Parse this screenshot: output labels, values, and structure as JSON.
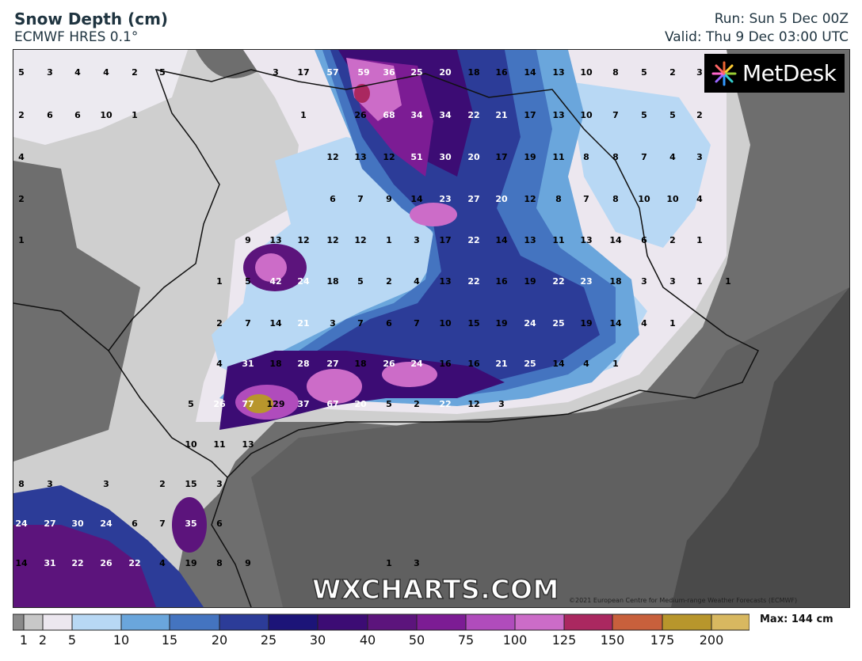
{
  "header": {
    "title": "Snow Depth (cm)",
    "subtitle": "ECMWF HRES 0.1°",
    "run": "Run: Sun 5 Dec 00Z",
    "valid": "Valid: Thu 9 Dec 03:00 UTC"
  },
  "logo": {
    "text": "MetDesk"
  },
  "watermark": "WXCHARTS.COM",
  "copyright": "©2021 European Centre for Medium-range Weather Forecasts (ECMWF)",
  "legend": {
    "max_label": "Max: 144 cm",
    "ticks": [
      "1",
      "2",
      "5",
      "10",
      "15",
      "20",
      "25",
      "30",
      "40",
      "50",
      "75",
      "100",
      "125",
      "150",
      "175",
      "200"
    ],
    "colors": [
      "#8a8a8a",
      "#c8c8c8",
      "#ece7ef",
      "#b8d8f4",
      "#6aa6dc",
      "#4474c0",
      "#2c3c98",
      "#1c1478",
      "#3c0c74",
      "#5c147c",
      "#7c1c94",
      "#b04cbc",
      "#cc6cc8",
      "#aa2860",
      "#c8603c",
      "#b8962c",
      "#d8b860",
      "#f4dca0"
    ]
  },
  "map_values": [
    {
      "t": "5",
      "c": "#000"
    },
    {
      "t": "3",
      "c": "#000"
    },
    {
      "t": "4",
      "c": "#000"
    },
    {
      "t": "4",
      "c": "#000"
    },
    {
      "t": "2",
      "c": "#000"
    },
    {
      "t": "5",
      "c": "#000"
    },
    {
      "t": "3",
      "c": "#000"
    },
    {
      "t": "17",
      "c": "#000"
    },
    {
      "t": "57",
      "c": "#fff"
    },
    {
      "t": "59",
      "c": "#fff"
    },
    {
      "t": "36",
      "c": "#fff"
    },
    {
      "t": "25",
      "c": "#fff"
    },
    {
      "t": "20",
      "c": "#fff"
    },
    {
      "t": "18",
      "c": "#000"
    },
    {
      "t": "16",
      "c": "#000"
    },
    {
      "t": "14",
      "c": "#000"
    },
    {
      "t": "13",
      "c": "#000"
    },
    {
      "t": "10",
      "c": "#000"
    },
    {
      "t": "8",
      "c": "#000"
    },
    {
      "t": "5",
      "c": "#000"
    },
    {
      "t": "2",
      "c": "#000"
    },
    {
      "t": "3",
      "c": "#000"
    },
    {
      "t": "2",
      "c": "#000"
    },
    {
      "t": "6",
      "c": "#000"
    },
    {
      "t": "6",
      "c": "#000"
    },
    {
      "t": "10",
      "c": "#000"
    },
    {
      "t": "1",
      "c": "#000"
    },
    {
      "t": "1",
      "c": "#000"
    },
    {
      "t": "26",
      "c": "#000"
    },
    {
      "t": "68",
      "c": "#fff"
    },
    {
      "t": "34",
      "c": "#fff"
    },
    {
      "t": "34",
      "c": "#fff"
    },
    {
      "t": "22",
      "c": "#fff"
    },
    {
      "t": "21",
      "c": "#fff"
    },
    {
      "t": "17",
      "c": "#000"
    },
    {
      "t": "13",
      "c": "#000"
    },
    {
      "t": "10",
      "c": "#000"
    },
    {
      "t": "7",
      "c": "#000"
    },
    {
      "t": "5",
      "c": "#000"
    },
    {
      "t": "5",
      "c": "#000"
    },
    {
      "t": "2",
      "c": "#000"
    },
    {
      "t": "4",
      "c": "#000"
    },
    {
      "t": "12",
      "c": "#000"
    },
    {
      "t": "13",
      "c": "#000"
    },
    {
      "t": "12",
      "c": "#000"
    },
    {
      "t": "51",
      "c": "#fff"
    },
    {
      "t": "30",
      "c": "#fff"
    },
    {
      "t": "20",
      "c": "#fff"
    },
    {
      "t": "17",
      "c": "#000"
    },
    {
      "t": "19",
      "c": "#000"
    },
    {
      "t": "11",
      "c": "#000"
    },
    {
      "t": "8",
      "c": "#000"
    },
    {
      "t": "8",
      "c": "#000"
    },
    {
      "t": "7",
      "c": "#000"
    },
    {
      "t": "4",
      "c": "#000"
    },
    {
      "t": "3",
      "c": "#000"
    },
    {
      "t": "2",
      "c": "#000"
    },
    {
      "t": "6",
      "c": "#000"
    },
    {
      "t": "7",
      "c": "#000"
    },
    {
      "t": "9",
      "c": "#000"
    },
    {
      "t": "14",
      "c": "#000"
    },
    {
      "t": "23",
      "c": "#fff"
    },
    {
      "t": "27",
      "c": "#fff"
    },
    {
      "t": "20",
      "c": "#fff"
    },
    {
      "t": "12",
      "c": "#000"
    },
    {
      "t": "8",
      "c": "#000"
    },
    {
      "t": "7",
      "c": "#000"
    },
    {
      "t": "8",
      "c": "#000"
    },
    {
      "t": "10",
      "c": "#000"
    },
    {
      "t": "10",
      "c": "#000"
    },
    {
      "t": "4",
      "c": "#000"
    },
    {
      "t": "1",
      "c": "#000"
    },
    {
      "t": "9",
      "c": "#000"
    },
    {
      "t": "13",
      "c": "#000"
    },
    {
      "t": "12",
      "c": "#000"
    },
    {
      "t": "12",
      "c": "#000"
    },
    {
      "t": "12",
      "c": "#000"
    },
    {
      "t": "1",
      "c": "#000"
    },
    {
      "t": "3",
      "c": "#000"
    },
    {
      "t": "17",
      "c": "#000"
    },
    {
      "t": "22",
      "c": "#fff"
    },
    {
      "t": "14",
      "c": "#000"
    },
    {
      "t": "13",
      "c": "#000"
    },
    {
      "t": "11",
      "c": "#000"
    },
    {
      "t": "13",
      "c": "#000"
    },
    {
      "t": "14",
      "c": "#000"
    },
    {
      "t": "6",
      "c": "#000"
    },
    {
      "t": "2",
      "c": "#000"
    },
    {
      "t": "1",
      "c": "#000"
    },
    {
      "t": "1",
      "c": "#000"
    },
    {
      "t": "5",
      "c": "#000"
    },
    {
      "t": "42",
      "c": "#fff"
    },
    {
      "t": "24",
      "c": "#fff"
    },
    {
      "t": "18",
      "c": "#000"
    },
    {
      "t": "5",
      "c": "#000"
    },
    {
      "t": "2",
      "c": "#000"
    },
    {
      "t": "4",
      "c": "#000"
    },
    {
      "t": "13",
      "c": "#000"
    },
    {
      "t": "22",
      "c": "#fff"
    },
    {
      "t": "16",
      "c": "#000"
    },
    {
      "t": "19",
      "c": "#000"
    },
    {
      "t": "22",
      "c": "#fff"
    },
    {
      "t": "23",
      "c": "#fff"
    },
    {
      "t": "18",
      "c": "#000"
    },
    {
      "t": "3",
      "c": "#000"
    },
    {
      "t": "3",
      "c": "#000"
    },
    {
      "t": "1",
      "c": "#000"
    },
    {
      "t": "1",
      "c": "#000"
    },
    {
      "t": "2",
      "c": "#000"
    },
    {
      "t": "7",
      "c": "#000"
    },
    {
      "t": "14",
      "c": "#000"
    },
    {
      "t": "21",
      "c": "#fff"
    },
    {
      "t": "3",
      "c": "#000"
    },
    {
      "t": "7",
      "c": "#000"
    },
    {
      "t": "6",
      "c": "#000"
    },
    {
      "t": "7",
      "c": "#000"
    },
    {
      "t": "10",
      "c": "#000"
    },
    {
      "t": "15",
      "c": "#000"
    },
    {
      "t": "19",
      "c": "#000"
    },
    {
      "t": "24",
      "c": "#fff"
    },
    {
      "t": "25",
      "c": "#fff"
    },
    {
      "t": "19",
      "c": "#000"
    },
    {
      "t": "14",
      "c": "#000"
    },
    {
      "t": "4",
      "c": "#000"
    },
    {
      "t": "1",
      "c": "#000"
    },
    {
      "t": "4",
      "c": "#000"
    },
    {
      "t": "31",
      "c": "#fff"
    },
    {
      "t": "18",
      "c": "#000"
    },
    {
      "t": "28",
      "c": "#fff"
    },
    {
      "t": "27",
      "c": "#fff"
    },
    {
      "t": "18",
      "c": "#000"
    },
    {
      "t": "26",
      "c": "#fff"
    },
    {
      "t": "24",
      "c": "#fff"
    },
    {
      "t": "16",
      "c": "#000"
    },
    {
      "t": "16",
      "c": "#000"
    },
    {
      "t": "21",
      "c": "#fff"
    },
    {
      "t": "25",
      "c": "#fff"
    },
    {
      "t": "14",
      "c": "#000"
    },
    {
      "t": "4",
      "c": "#000"
    },
    {
      "t": "1",
      "c": "#000"
    },
    {
      "t": "5",
      "c": "#000"
    },
    {
      "t": "26",
      "c": "#fff"
    },
    {
      "t": "77",
      "c": "#fff"
    },
    {
      "t": "129",
      "c": "#000"
    },
    {
      "t": "37",
      "c": "#fff"
    },
    {
      "t": "67",
      "c": "#fff"
    },
    {
      "t": "20",
      "c": "#fff"
    },
    {
      "t": "5",
      "c": "#000"
    },
    {
      "t": "2",
      "c": "#000"
    },
    {
      "t": "22",
      "c": "#fff"
    },
    {
      "t": "12",
      "c": "#000"
    },
    {
      "t": "3",
      "c": "#000"
    },
    {
      "t": "10",
      "c": "#000"
    },
    {
      "t": "11",
      "c": "#000"
    },
    {
      "t": "13",
      "c": "#000"
    },
    {
      "t": "8",
      "c": "#000"
    },
    {
      "t": "3",
      "c": "#000"
    },
    {
      "t": "3",
      "c": "#000"
    },
    {
      "t": "2",
      "c": "#000"
    },
    {
      "t": "15",
      "c": "#000"
    },
    {
      "t": "3",
      "c": "#000"
    },
    {
      "t": "24",
      "c": "#fff"
    },
    {
      "t": "27",
      "c": "#fff"
    },
    {
      "t": "30",
      "c": "#fff"
    },
    {
      "t": "24",
      "c": "#fff"
    },
    {
      "t": "6",
      "c": "#000"
    },
    {
      "t": "7",
      "c": "#000"
    },
    {
      "t": "35",
      "c": "#fff"
    },
    {
      "t": "6",
      "c": "#000"
    },
    {
      "t": "14",
      "c": "#000"
    },
    {
      "t": "31",
      "c": "#fff"
    },
    {
      "t": "22",
      "c": "#fff"
    },
    {
      "t": "26",
      "c": "#fff"
    },
    {
      "t": "22",
      "c": "#fff"
    },
    {
      "t": "4",
      "c": "#000"
    },
    {
      "t": "19",
      "c": "#000"
    },
    {
      "t": "8",
      "c": "#000"
    },
    {
      "t": "9",
      "c": "#000"
    },
    {
      "t": "1",
      "c": "#000"
    },
    {
      "t": "3",
      "c": "#000"
    }
  ]
}
